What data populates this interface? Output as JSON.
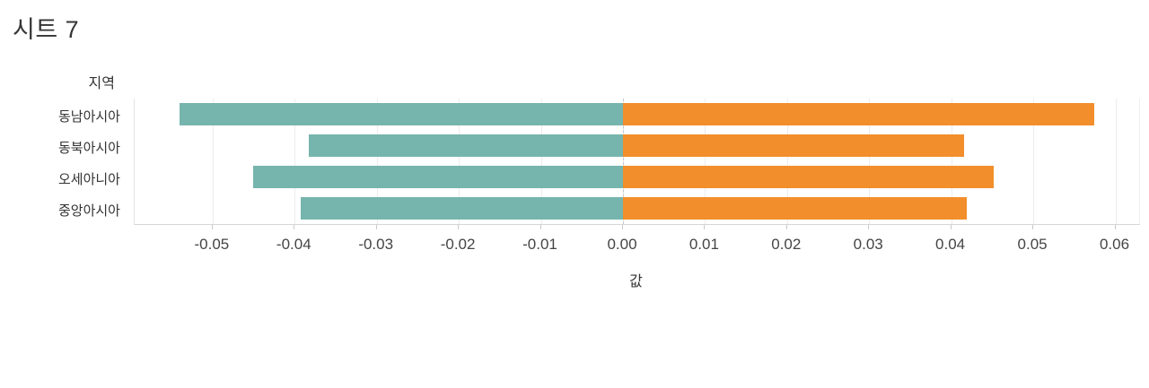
{
  "title": "시트 7",
  "colors": {
    "negative_bar": "#76b5ad",
    "positive_bar": "#f28e2b",
    "gridline": "#ececec",
    "zero_line": "#c6c6c6",
    "axis_text": "#454545",
    "label_text": "#333333"
  },
  "chart_data": {
    "type": "bar",
    "orientation": "horizontal-diverging",
    "title": "시트 7",
    "row_field": "지역",
    "categories": [
      "동남아시아",
      "동북아시아",
      "오세아니아",
      "중앙아시아"
    ],
    "series": [
      {
        "name": "negative",
        "color": "#76b5ad",
        "values": [
          -0.054,
          -0.0383,
          -0.0451,
          -0.0393
        ]
      },
      {
        "name": "positive",
        "color": "#f28e2b",
        "values": [
          0.0574,
          0.0416,
          0.0452,
          0.0419
        ]
      }
    ],
    "xlabel": "값",
    "xlim": [
      -0.0595,
      0.0629
    ],
    "xticks": [
      {
        "v": -0.05,
        "label": "-0.05"
      },
      {
        "v": -0.04,
        "label": "-0.04"
      },
      {
        "v": -0.03,
        "label": "-0.03"
      },
      {
        "v": -0.02,
        "label": "-0.02"
      },
      {
        "v": -0.01,
        "label": "-0.01"
      },
      {
        "v": 0.0,
        "label": "0.00"
      },
      {
        "v": 0.01,
        "label": "0.01"
      },
      {
        "v": 0.02,
        "label": "0.02"
      },
      {
        "v": 0.03,
        "label": "0.03"
      },
      {
        "v": 0.04,
        "label": "0.04"
      },
      {
        "v": 0.05,
        "label": "0.05"
      },
      {
        "v": 0.06,
        "label": "0.06"
      }
    ],
    "grid": "vertical",
    "zero_line": "dashed",
    "legend": "none"
  }
}
